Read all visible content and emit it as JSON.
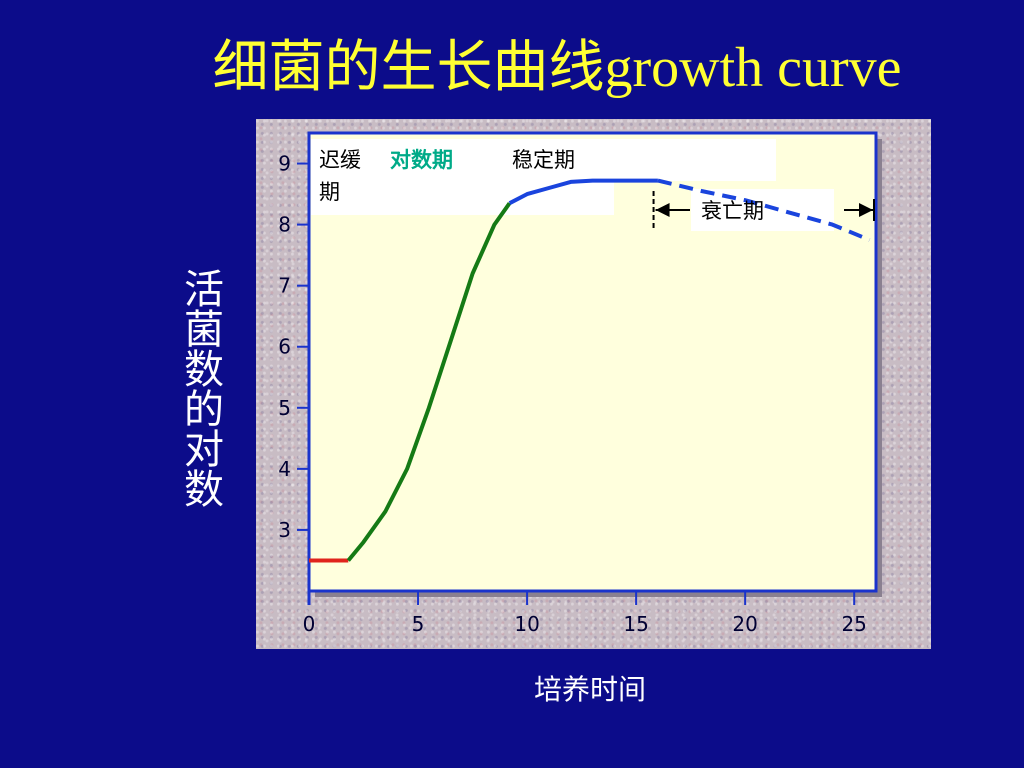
{
  "slide": {
    "title_cn": "细菌的生长曲线",
    "title_en": "growth curve",
    "y_axis_label": "活菌数的对数",
    "x_axis_label": "培养时间"
  },
  "colors": {
    "background": "#0c0c8a",
    "title": "#ffff33",
    "plot_area": "#ffffdd",
    "axis": "#1a33cc",
    "lag_phase": "#e0241c",
    "log_phase": "#157a15",
    "stationary_phase": "#1a44dd",
    "death_phase": "#1a44dd"
  },
  "phases": {
    "lag": "迟缓期",
    "lag_line1": "迟缓",
    "lag_line2": "期",
    "log": "对数期",
    "stationary": "稳定期",
    "death": "衰亡期"
  },
  "chart_data": {
    "type": "line",
    "title": "",
    "xlabel": "培养时间",
    "ylabel": "活菌数的对数",
    "xlim": [
      0,
      26
    ],
    "ylim": [
      2,
      9.5
    ],
    "x_ticks": [
      0,
      5,
      10,
      15,
      20,
      25
    ],
    "y_ticks": [
      3,
      4,
      5,
      6,
      7,
      8,
      9
    ],
    "grid": false,
    "series": [
      {
        "name": "迟缓期",
        "style": "solid",
        "x": [
          0,
          1.8
        ],
        "y": [
          2.5,
          2.5
        ]
      },
      {
        "name": "对数期",
        "style": "solid",
        "x": [
          1.8,
          2.5,
          3.5,
          4.5,
          5.5,
          6.5,
          7.5,
          8.5,
          9.2
        ],
        "y": [
          2.5,
          2.8,
          3.3,
          4.0,
          5.0,
          6.1,
          7.2,
          8.0,
          8.35
        ]
      },
      {
        "name": "稳定期",
        "style": "solid",
        "x": [
          9.2,
          10,
          11,
          12,
          13,
          14,
          15,
          16
        ],
        "y": [
          8.35,
          8.5,
          8.6,
          8.7,
          8.72,
          8.72,
          8.72,
          8.72
        ]
      },
      {
        "name": "衰亡期",
        "style": "dashed",
        "x": [
          16,
          18,
          20,
          22,
          24,
          25.7
        ],
        "y": [
          8.72,
          8.55,
          8.4,
          8.2,
          8.0,
          7.75
        ]
      }
    ]
  }
}
